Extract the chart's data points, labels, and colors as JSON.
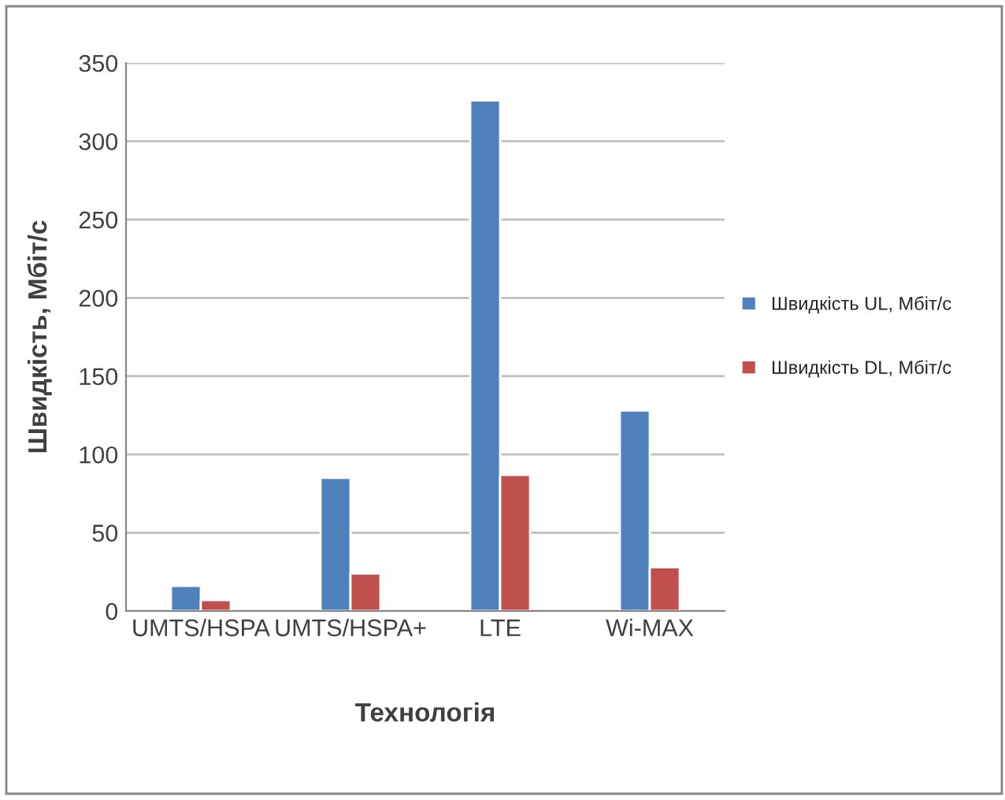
{
  "chart_data": {
    "type": "bar",
    "xlabel": "Технологія",
    "ylabel": "Швидкість, Мбіт/с",
    "categories": [
      "UMTS/HSPA",
      "UMTS/HSPA+",
      "LTE",
      "Wi-MAX"
    ],
    "series": [
      {
        "name": "Швидкість UL, Мбіт/с",
        "color": "#4f81bd",
        "values": [
          16,
          85,
          326,
          128
        ]
      },
      {
        "name": "Швидкість DL, Мбіт/с",
        "color": "#c0504d",
        "values": [
          7,
          24,
          87,
          28
        ]
      }
    ],
    "ylim": [
      0,
      350
    ],
    "yticks": [
      0,
      50,
      100,
      150,
      200,
      250,
      300,
      350
    ],
    "grid": "y",
    "legend": "right"
  }
}
